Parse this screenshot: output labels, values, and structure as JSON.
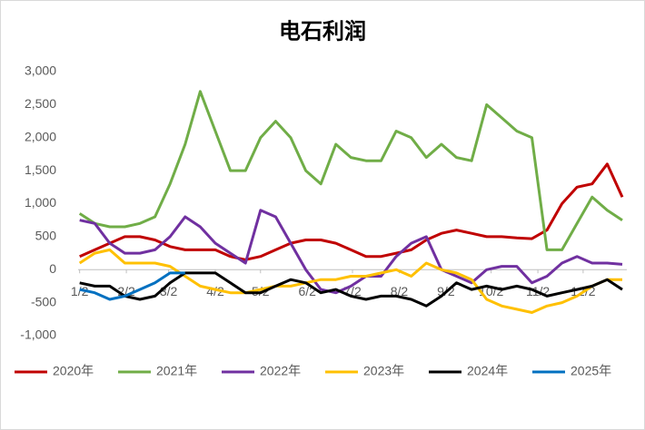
{
  "chart_data": {
    "type": "line",
    "title": "电石利润",
    "x": [
      2,
      12,
      22,
      32,
      42,
      52,
      62,
      72,
      82,
      92,
      102,
      112,
      122,
      132,
      142,
      152,
      162,
      172,
      182,
      192,
      202,
      212,
      222,
      232,
      242,
      252,
      262,
      272,
      282,
      292,
      302,
      312,
      322,
      332,
      342,
      352,
      362
    ],
    "xlim": [
      1,
      365
    ],
    "xticks": [
      {
        "value": 2,
        "label": "1/2"
      },
      {
        "value": 33,
        "label": "2/2"
      },
      {
        "value": 61,
        "label": "3/2"
      },
      {
        "value": 92,
        "label": "4/2"
      },
      {
        "value": 122,
        "label": "5/2"
      },
      {
        "value": 153,
        "label": "6/2"
      },
      {
        "value": 183,
        "label": "7/2"
      },
      {
        "value": 214,
        "label": "8/2"
      },
      {
        "value": 245,
        "label": "9/2"
      },
      {
        "value": 275,
        "label": "10/2"
      },
      {
        "value": 306,
        "label": "11/2"
      },
      {
        "value": 336,
        "label": "12/2"
      }
    ],
    "ylim": [
      -1000,
      3000
    ],
    "yticks": [
      {
        "value": -1000,
        "label": "-1,000"
      },
      {
        "value": -500,
        "label": "-500"
      },
      0,
      500,
      {
        "value": 1000,
        "label": "1,000"
      },
      {
        "value": 1500,
        "label": "1,500"
      },
      {
        "value": 2000,
        "label": "2,000"
      },
      {
        "value": 2500,
        "label": "2,500"
      },
      {
        "value": 3000,
        "label": "3,000"
      }
    ],
    "legend": "bottom",
    "series": [
      {
        "name": "2020年",
        "color": "#c00000",
        "values": [
          200,
          300,
          400,
          500,
          500,
          450,
          350,
          300,
          300,
          300,
          200,
          150,
          200,
          300,
          400,
          450,
          450,
          400,
          300,
          200,
          200,
          250,
          300,
          450,
          550,
          600,
          550,
          500,
          500,
          480,
          470,
          600,
          1000,
          1250,
          1300,
          1600,
          1100
        ]
      },
      {
        "name": "2021年",
        "color": "#70ad47",
        "values": [
          850,
          700,
          650,
          650,
          700,
          800,
          1300,
          1900,
          2700,
          2100,
          1500,
          1500,
          2000,
          2250,
          2000,
          1500,
          1300,
          1900,
          1700,
          1650,
          1650,
          2100,
          2000,
          1700,
          1900,
          1700,
          1650,
          2500,
          2300,
          2100,
          2000,
          300,
          300,
          700,
          1100,
          900,
          750
        ]
      },
      {
        "name": "2022年",
        "color": "#7030a0",
        "values": [
          750,
          700,
          400,
          250,
          250,
          300,
          500,
          800,
          650,
          400,
          250,
          100,
          900,
          800,
          400,
          0,
          -300,
          -350,
          -250,
          -100,
          -100,
          200,
          400,
          500,
          0,
          -100,
          -200,
          0,
          50,
          50,
          -200,
          -100,
          100,
          200,
          100,
          100,
          80
        ]
      },
      {
        "name": "2023年",
        "color": "#ffc000",
        "values": [
          100,
          250,
          300,
          100,
          100,
          100,
          50,
          -100,
          -250,
          -300,
          -350,
          -350,
          -300,
          -250,
          -250,
          -200,
          -150,
          -150,
          -100,
          -100,
          -50,
          0,
          -100,
          100,
          0,
          -50,
          -150,
          -450,
          -550,
          -600,
          -650,
          -550,
          -500,
          -400,
          -250,
          -150,
          -150
        ]
      },
      {
        "name": "2024年",
        "color": "#000000",
        "values": [
          -200,
          -250,
          -250,
          -400,
          -450,
          -400,
          -200,
          -50,
          -50,
          -50,
          -200,
          -350,
          -350,
          -250,
          -150,
          -200,
          -350,
          -300,
          -400,
          -450,
          -400,
          -400,
          -450,
          -550,
          -400,
          -200,
          -300,
          -250,
          -300,
          -250,
          -300,
          -400,
          -350,
          -300,
          -250,
          -150,
          -300
        ]
      },
      {
        "name": "2025年",
        "color": "#0070c0",
        "values": [
          -300,
          -350,
          -450,
          -400,
          -300,
          -200,
          -50,
          -50,
          null,
          null,
          null,
          null,
          null,
          null,
          null,
          null,
          null,
          null,
          null,
          null,
          null,
          null,
          null,
          null,
          null,
          null,
          null,
          null,
          null,
          null,
          null,
          null,
          null,
          null,
          null,
          null,
          null
        ]
      }
    ]
  }
}
